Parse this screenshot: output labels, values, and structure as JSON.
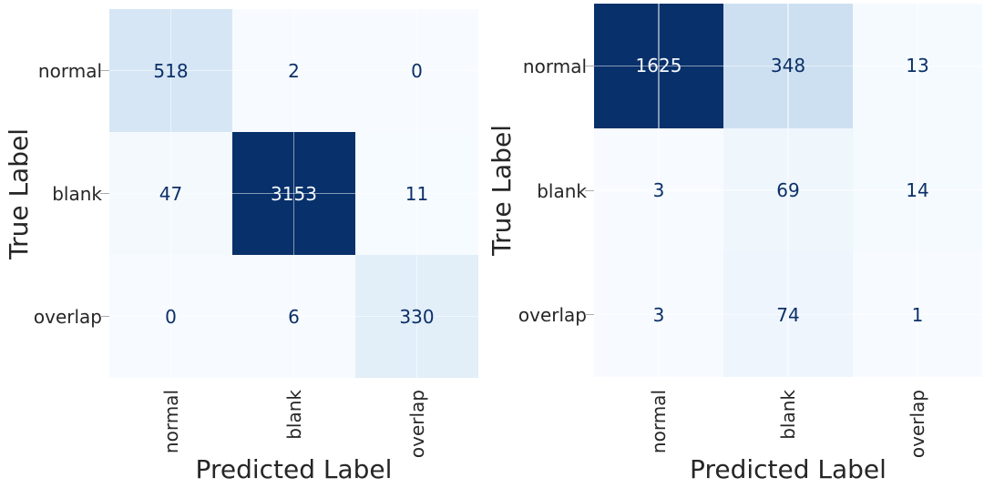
{
  "chart_data": [
    {
      "type": "heatmap",
      "name": "confusion-matrix-left",
      "xlabel": "Predicted Label",
      "ylabel": "True Label",
      "x_categories": [
        "normal",
        "blank",
        "overlap"
      ],
      "y_categories": [
        "normal",
        "blank",
        "overlap"
      ],
      "matrix": [
        [
          518,
          2,
          0
        ],
        [
          47,
          3153,
          11
        ],
        [
          0,
          6,
          330
        ]
      ],
      "vmin": 0,
      "vmax": 3153,
      "colormap": "Blues",
      "annotated": true,
      "grid": true,
      "legend": "none"
    },
    {
      "type": "heatmap",
      "name": "confusion-matrix-right",
      "xlabel": "Predicted Label",
      "ylabel": "True Label",
      "x_categories": [
        "normal",
        "blank",
        "overlap"
      ],
      "y_categories": [
        "normal",
        "blank",
        "overlap"
      ],
      "matrix": [
        [
          1625,
          348,
          13
        ],
        [
          3,
          69,
          14
        ],
        [
          3,
          74,
          1
        ]
      ],
      "vmin": 0,
      "vmax": 1625,
      "colormap": "Blues",
      "annotated": true,
      "grid": true,
      "legend": "none"
    }
  ],
  "colors": {
    "background": "#ffffff",
    "axis_label": "#262626",
    "tick_label": "#262626",
    "annotation_on_light": "#0b3068",
    "annotation_on_dark": "#f5f9fe",
    "heatmap_min": "#f7fbff",
    "heatmap_max": "#08306b",
    "gridline": "rgba(255,255,255,0.5)"
  }
}
